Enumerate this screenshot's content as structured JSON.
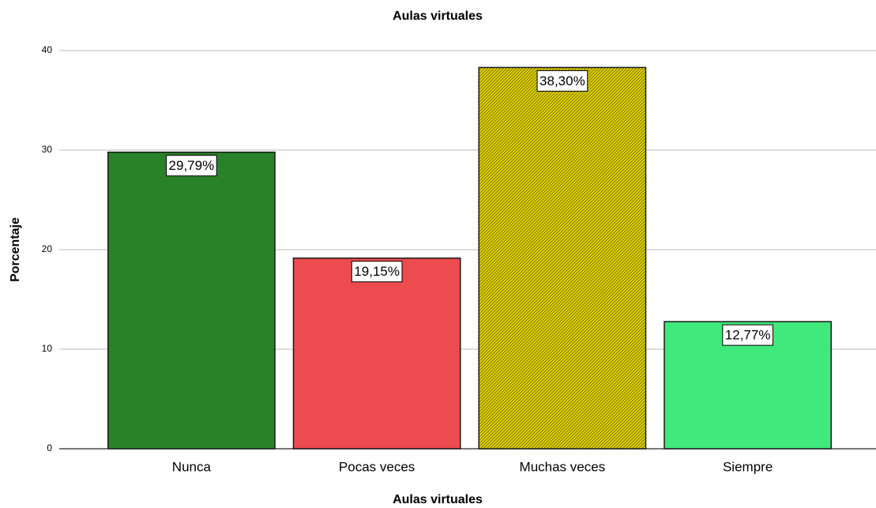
{
  "chart_data": {
    "type": "bar",
    "title": "Aulas virtuales",
    "x_label": "Aulas virtuales",
    "y_label": "Porcentaje",
    "categories": [
      "Nunca",
      "Pocas veces",
      "Muchas veces",
      "Siempre"
    ],
    "values": [
      29.79,
      19.15,
      38.3,
      12.77
    ],
    "value_labels": [
      "29,79%",
      "19,15%",
      "38,30%",
      "12,77%"
    ],
    "colors": [
      "#2a8228",
      "#ec4b4f",
      "#e3d400",
      "#41e87b"
    ],
    "hatched": [
      false,
      false,
      true,
      false
    ],
    "ylim": [
      0,
      40
    ],
    "yticks": [
      0,
      10,
      20,
      30,
      40
    ],
    "grid": true
  }
}
